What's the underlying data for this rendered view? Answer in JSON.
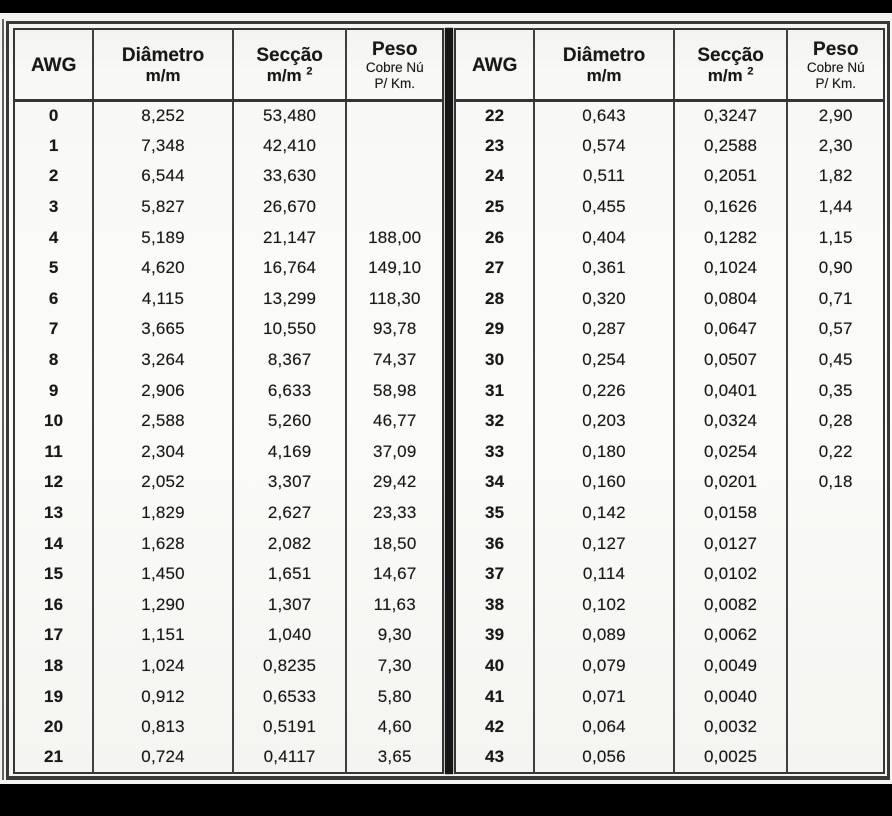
{
  "columns": {
    "awg": "AWG",
    "diametro_title": "Diâmetro",
    "diametro_unit": "m/m",
    "seccao_title": "Secção",
    "seccao_unit": "m/m",
    "seccao_sup": "2",
    "peso_title": "Peso",
    "peso_sub1": "Cobre Nú",
    "peso_sub2": "P/ Km."
  },
  "tables": [
    {
      "side": "left",
      "rows": [
        [
          "0",
          "8,252",
          "53,480",
          ""
        ],
        [
          "1",
          "7,348",
          "42,410",
          ""
        ],
        [
          "2",
          "6,544",
          "33,630",
          ""
        ],
        [
          "3",
          "5,827",
          "26,670",
          ""
        ],
        [
          "4",
          "5,189",
          "21,147",
          "188,00"
        ],
        [
          "5",
          "4,620",
          "16,764",
          "149,10"
        ],
        [
          "6",
          "4,115",
          "13,299",
          "118,30"
        ],
        [
          "7",
          "3,665",
          "10,550",
          "93,78"
        ],
        [
          "8",
          "3,264",
          "8,367",
          "74,37"
        ],
        [
          "9",
          "2,906",
          "6,633",
          "58,98"
        ],
        [
          "10",
          "2,588",
          "5,260",
          "46,77"
        ],
        [
          "11",
          "2,304",
          "4,169",
          "37,09"
        ],
        [
          "12",
          "2,052",
          "3,307",
          "29,42"
        ],
        [
          "13",
          "1,829",
          "2,627",
          "23,33"
        ],
        [
          "14",
          "1,628",
          "2,082",
          "18,50"
        ],
        [
          "15",
          "1,450",
          "1,651",
          "14,67"
        ],
        [
          "16",
          "1,290",
          "1,307",
          "11,63"
        ],
        [
          "17",
          "1,151",
          "1,040",
          "9,30"
        ],
        [
          "18",
          "1,024",
          "0,8235",
          "7,30"
        ],
        [
          "19",
          "0,912",
          "0,6533",
          "5,80"
        ],
        [
          "20",
          "0,813",
          "0,5191",
          "4,60"
        ],
        [
          "21",
          "0,724",
          "0,4117",
          "3,65"
        ]
      ]
    },
    {
      "side": "right",
      "rows": [
        [
          "22",
          "0,643",
          "0,3247",
          "2,90"
        ],
        [
          "23",
          "0,574",
          "0,2588",
          "2,30"
        ],
        [
          "24",
          "0,511",
          "0,2051",
          "1,82"
        ],
        [
          "25",
          "0,455",
          "0,1626",
          "1,44"
        ],
        [
          "26",
          "0,404",
          "0,1282",
          "1,15"
        ],
        [
          "27",
          "0,361",
          "0,1024",
          "0,90"
        ],
        [
          "28",
          "0,320",
          "0,0804",
          "0,71"
        ],
        [
          "29",
          "0,287",
          "0,0647",
          "0,57"
        ],
        [
          "30",
          "0,254",
          "0,0507",
          "0,45"
        ],
        [
          "31",
          "0,226",
          "0,0401",
          "0,35"
        ],
        [
          "32",
          "0,203",
          "0,0324",
          "0,28"
        ],
        [
          "33",
          "0,180",
          "0,0254",
          "0,22"
        ],
        [
          "34",
          "0,160",
          "0,0201",
          "0,18"
        ],
        [
          "35",
          "0,142",
          "0,0158",
          ""
        ],
        [
          "36",
          "0,127",
          "0,0127",
          ""
        ],
        [
          "37",
          "0,114",
          "0,0102",
          ""
        ],
        [
          "38",
          "0,102",
          "0,0082",
          ""
        ],
        [
          "39",
          "0,089",
          "0,0062",
          ""
        ],
        [
          "40",
          "0,079",
          "0,0049",
          ""
        ],
        [
          "41",
          "0,071",
          "0,0040",
          ""
        ],
        [
          "42",
          "0,064",
          "0,0032",
          ""
        ],
        [
          "43",
          "0,056",
          "0,0025",
          ""
        ]
      ]
    }
  ],
  "colors": {
    "letterbox": "#000000",
    "paper": "#f8f8f6",
    "ink": "#181818",
    "border": "#383838"
  }
}
